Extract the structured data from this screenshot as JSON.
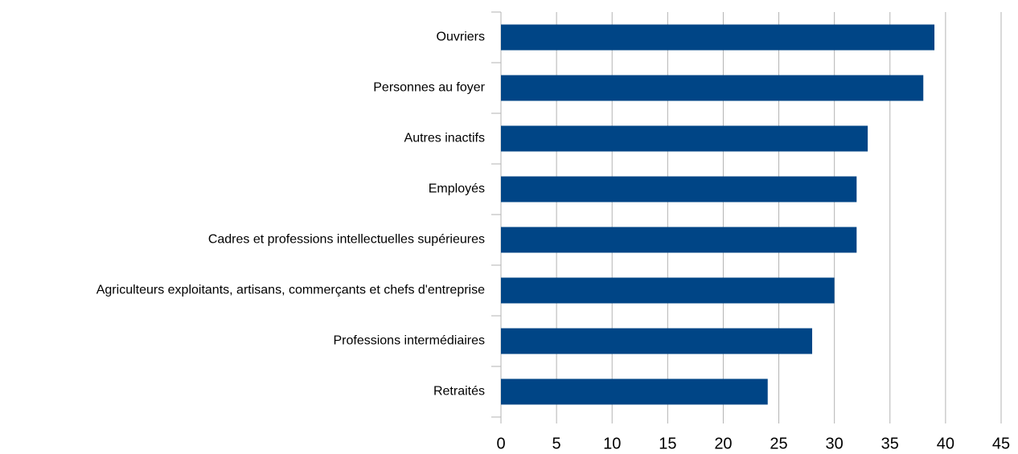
{
  "chart_data": {
    "type": "bar",
    "orientation": "horizontal",
    "categories": [
      "Ouvriers",
      "Personnes au foyer",
      "Autres inactifs",
      "Employés",
      "Cadres et professions intellectuelles supérieures",
      "Agriculteurs exploitants, artisans, commerçants et chefs d'entreprise",
      "Professions intermédiaires",
      "Retraités"
    ],
    "values": [
      39,
      38,
      33,
      32,
      32,
      30,
      28,
      24
    ],
    "color": "#004586",
    "xlim": [
      0,
      45
    ],
    "xticks": [
      0,
      5,
      10,
      15,
      20,
      25,
      30,
      35,
      40,
      45
    ],
    "grid": true
  }
}
